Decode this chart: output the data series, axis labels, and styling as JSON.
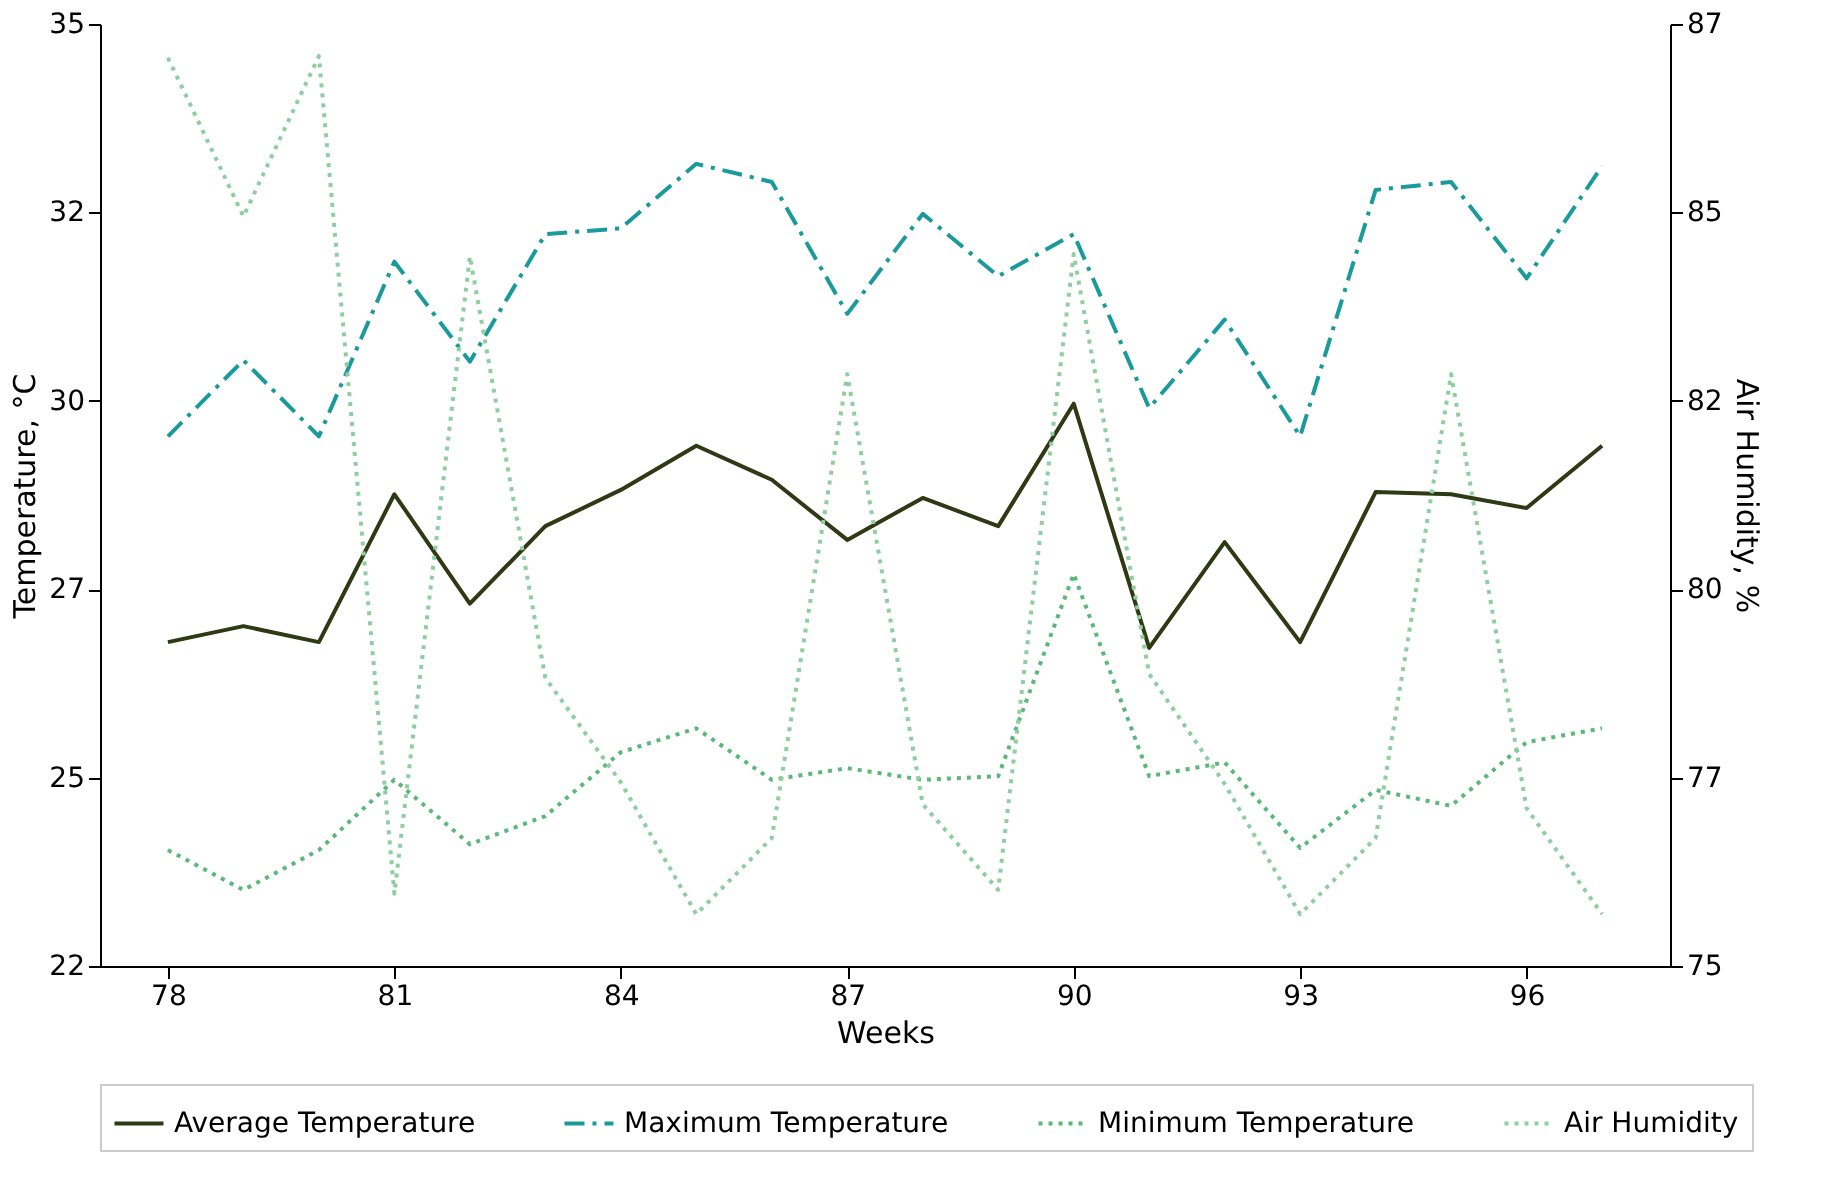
{
  "chart_data": {
    "type": "line",
    "xlabel": "Weeks",
    "ylabel": "Temperature, °C",
    "y2label": "Air Humidity, %",
    "x": [
      78,
      79,
      80,
      81,
      82,
      83,
      84,
      85,
      86,
      87,
      88,
      89,
      90,
      91,
      92,
      93,
      94,
      95,
      96,
      97
    ],
    "series": [
      {
        "name": "Average Temperature",
        "color": "#2d3a14",
        "line_style": "solid",
        "values": [
          26.47,
          26.69,
          26.47,
          28.51,
          27.0,
          28.07,
          28.57,
          29.18,
          28.71,
          27.88,
          28.46,
          28.07,
          29.76,
          26.39,
          27.85,
          26.47,
          28.54,
          28.51,
          28.32,
          29.18
        ]
      },
      {
        "name": "Maximum Temperature",
        "color": "#1a9a9a",
        "line_style": "dashdot",
        "values": [
          29.31,
          30.36,
          29.31,
          31.72,
          30.34,
          32.1,
          32.18,
          33.07,
          32.82,
          31.0,
          32.38,
          31.52,
          32.1,
          29.7,
          30.92,
          29.31,
          32.71,
          32.82,
          31.49,
          33.04
        ]
      },
      {
        "name": "Minimum Temperature",
        "color": "#5cb87a",
        "line_style": "dotted",
        "values": [
          23.6,
          23.05,
          23.6,
          24.57,
          23.68,
          24.07,
          24.95,
          25.28,
          24.57,
          24.73,
          24.57,
          24.62,
          27.41,
          24.62,
          24.81,
          23.63,
          24.43,
          24.21,
          25.09,
          25.28
        ]
      },
      {
        "name": "Air Humidity",
        "color": "#8fce9f",
        "line_style": "dotted",
        "axis": "y2",
        "values": [
          86.57,
          84.55,
          86.59,
          75.92,
          84.04,
          78.67,
          77.34,
          75.66,
          76.63,
          82.54,
          77.06,
          75.97,
          84.07,
          78.72,
          77.32,
          75.66,
          76.63,
          82.54,
          77.01,
          75.66
        ]
      }
    ],
    "xlim": [
      77.1,
      97.9
    ],
    "xticks": [
      78,
      81,
      84,
      87,
      90,
      93,
      96
    ],
    "ylim": [
      22,
      35
    ],
    "yticks": [
      22,
      {
        "value": 24.6,
        "label": "25"
      },
      {
        "value": 27.2,
        "label": "27"
      },
      {
        "value": 29.8,
        "label": "30"
      },
      {
        "value": 32.4,
        "label": "32"
      },
      35
    ],
    "y2lim": [
      75,
      87
    ],
    "y2ticks": [
      75,
      {
        "value": 77.4,
        "label": "77"
      },
      {
        "value": 79.8,
        "label": "80"
      },
      {
        "value": 82.2,
        "label": "82"
      },
      {
        "value": 84.6,
        "label": "85"
      },
      87
    ],
    "legend": "bottom",
    "grid": false,
    "marker": "none"
  }
}
